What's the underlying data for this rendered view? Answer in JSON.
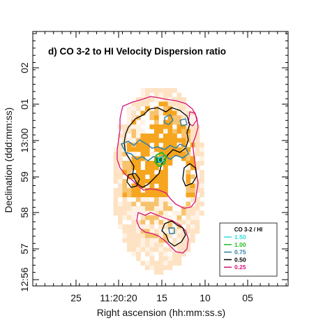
{
  "chart_data": {
    "type": "heatmap",
    "title": "d) CO 3-2 to HI Velocity Dispersion ratio",
    "xlabel": "Right ascension (hh:mm:ss.s)",
    "ylabel": "Declination (ddd:mm:ss)",
    "x_ticks": [
      "25",
      "11:20:20",
      "15",
      "10",
      "05"
    ],
    "y_ticks": [
      "12:56",
      "57",
      "58",
      "59",
      "13:00",
      "01",
      "02"
    ],
    "legend": {
      "title": "CO 3-2 / HI",
      "placement": "lower-right",
      "entries": [
        {
          "label": "1.50",
          "color": "#33dddd"
        },
        {
          "label": "1.00",
          "color": "#22bb22"
        },
        {
          "label": "0.75",
          "color": "#2e7fa8"
        },
        {
          "label": "0.50",
          "color": "#000000"
        },
        {
          "label": "0.25",
          "color": "#d6157a"
        }
      ]
    },
    "colors": {
      "high_ratio": "#f5a51e",
      "mid_ratio": "#f8c36f",
      "low_ratio": "#fde3c4",
      "faint": "#fff2e4"
    }
  }
}
